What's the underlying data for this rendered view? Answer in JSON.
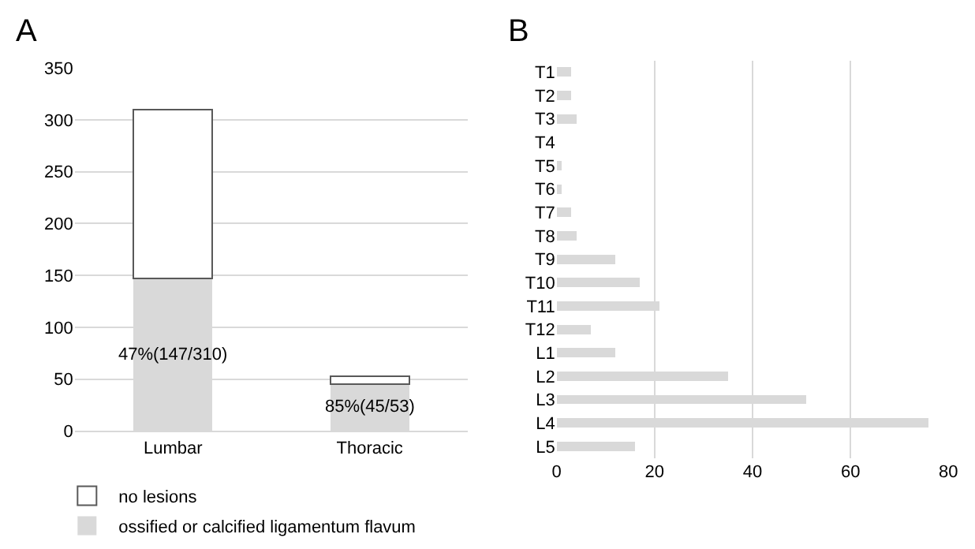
{
  "chart_data": [
    {
      "type": "bar",
      "title": "A",
      "categories": [
        "Lumbar",
        "Thoracic"
      ],
      "stacked": true,
      "series": [
        {
          "name": "ossified or calcified ligamentum flavum",
          "color": "#d9d9d9",
          "values": [
            147,
            45
          ]
        },
        {
          "name": "no lesions",
          "color": "#ffffff",
          "values": [
            163,
            8
          ]
        }
      ],
      "ylim": [
        0,
        350
      ],
      "yticks": [
        0,
        50,
        100,
        150,
        200,
        250,
        300,
        350
      ],
      "grid": "y",
      "legend": "bottom",
      "annotations": [
        "47%(147/310)",
        "85%(45/53)"
      ]
    },
    {
      "type": "bar",
      "title": "B",
      "orientation": "horizontal",
      "categories": [
        "T1",
        "T2",
        "T3",
        "T4",
        "T5",
        "T6",
        "T7",
        "T8",
        "T9",
        "T10",
        "T11",
        "T12",
        "L1",
        "L2",
        "L3",
        "L4",
        "L5"
      ],
      "values": [
        3,
        3,
        4,
        0,
        1,
        1,
        3,
        4,
        12,
        17,
        21,
        7,
        12,
        35,
        51,
        76,
        16
      ],
      "color": "#d9d9d9",
      "xlim": [
        0,
        80
      ],
      "xticks": [
        0,
        20,
        40,
        60,
        80
      ],
      "grid": "x"
    }
  ]
}
